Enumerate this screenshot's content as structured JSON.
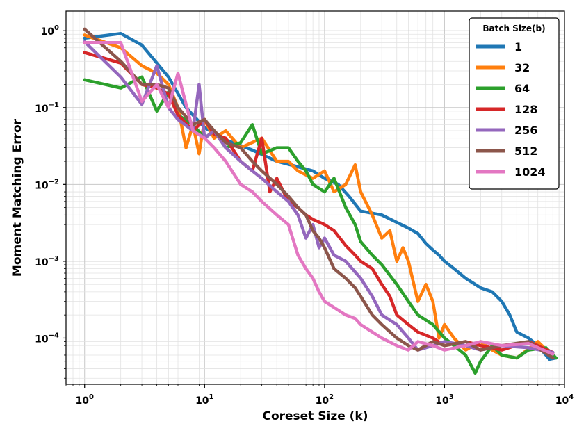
{
  "chart_data": {
    "type": "line",
    "title": "",
    "xlabel": "Coreset Size (k)",
    "ylabel": "Moment Matching Error",
    "xscale": "log",
    "yscale": "log",
    "xlim": [
      0.7,
      10000
    ],
    "ylim": [
      2.5e-05,
      1.8
    ],
    "grid": true,
    "x_ticks": [
      {
        "base": "10",
        "exp": "0",
        "value": 1
      },
      {
        "base": "10",
        "exp": "1",
        "value": 10
      },
      {
        "base": "10",
        "exp": "2",
        "value": 100
      },
      {
        "base": "10",
        "exp": "3",
        "value": 1000
      },
      {
        "base": "10",
        "exp": "4",
        "value": 10000
      }
    ],
    "y_ticks": [
      {
        "base": "10",
        "exp": "0",
        "value": 1
      },
      {
        "base": "10",
        "exp": "−1",
        "value": 0.1
      },
      {
        "base": "10",
        "exp": "−2",
        "value": 0.01
      },
      {
        "base": "10",
        "exp": "−3",
        "value": 0.001
      },
      {
        "base": "10",
        "exp": "−4",
        "value": 0.0001
      }
    ],
    "legend": {
      "title": "Batch Size(b)",
      "position": "top-right"
    },
    "series": [
      {
        "name": "1",
        "color": "#1f77b4",
        "points": [
          [
            1,
            0.8
          ],
          [
            2,
            0.92
          ],
          [
            3,
            0.65
          ],
          [
            5,
            0.25
          ],
          [
            7,
            0.1
          ],
          [
            10,
            0.055
          ],
          [
            15,
            0.038
          ],
          [
            25,
            0.028
          ],
          [
            40,
            0.02
          ],
          [
            60,
            0.017
          ],
          [
            80,
            0.015
          ],
          [
            100,
            0.012
          ],
          [
            130,
            0.01
          ],
          [
            160,
            0.007
          ],
          [
            200,
            0.0045
          ],
          [
            300,
            0.004
          ],
          [
            400,
            0.0032
          ],
          [
            500,
            0.0027
          ],
          [
            600,
            0.0023
          ],
          [
            700,
            0.0017
          ],
          [
            800,
            0.0014
          ],
          [
            900,
            0.0012
          ],
          [
            1000,
            0.001
          ],
          [
            1200,
            0.0008
          ],
          [
            1500,
            0.0006
          ],
          [
            2000,
            0.00045
          ],
          [
            2500,
            0.0004
          ],
          [
            3000,
            0.0003
          ],
          [
            3500,
            0.0002
          ],
          [
            4000,
            0.00012
          ],
          [
            5000,
            0.0001
          ],
          [
            6000,
            8e-05
          ],
          [
            7500,
            5.3e-05
          ],
          [
            8500,
            5.5e-05
          ]
        ]
      },
      {
        "name": "32",
        "color": "#ff7f0e",
        "points": [
          [
            1,
            0.88
          ],
          [
            2,
            0.6
          ],
          [
            3,
            0.35
          ],
          [
            4,
            0.28
          ],
          [
            5,
            0.2
          ],
          [
            6,
            0.1
          ],
          [
            7,
            0.03
          ],
          [
            8,
            0.06
          ],
          [
            9,
            0.025
          ],
          [
            10,
            0.07
          ],
          [
            12,
            0.04
          ],
          [
            15,
            0.05
          ],
          [
            20,
            0.03
          ],
          [
            30,
            0.04
          ],
          [
            40,
            0.02
          ],
          [
            50,
            0.02
          ],
          [
            60,
            0.015
          ],
          [
            80,
            0.012
          ],
          [
            100,
            0.015
          ],
          [
            120,
            0.008
          ],
          [
            150,
            0.01
          ],
          [
            180,
            0.018
          ],
          [
            200,
            0.008
          ],
          [
            250,
            0.004
          ],
          [
            300,
            0.002
          ],
          [
            350,
            0.0025
          ],
          [
            400,
            0.001
          ],
          [
            450,
            0.0015
          ],
          [
            500,
            0.001
          ],
          [
            600,
            0.0003
          ],
          [
            700,
            0.0005
          ],
          [
            800,
            0.0003
          ],
          [
            900,
            0.0001
          ],
          [
            1000,
            0.00015
          ],
          [
            1200,
            0.0001
          ],
          [
            1500,
            7e-05
          ],
          [
            2000,
            9e-05
          ],
          [
            2500,
            7e-05
          ],
          [
            3000,
            6e-05
          ],
          [
            4000,
            5.5e-05
          ],
          [
            6000,
            9e-05
          ],
          [
            8000,
            5.8e-05
          ]
        ]
      },
      {
        "name": "64",
        "color": "#2ca02c",
        "points": [
          [
            1,
            0.23
          ],
          [
            2,
            0.18
          ],
          [
            3,
            0.25
          ],
          [
            4,
            0.09
          ],
          [
            5,
            0.16
          ],
          [
            6,
            0.08
          ],
          [
            8,
            0.06
          ],
          [
            10,
            0.04
          ],
          [
            12,
            0.05
          ],
          [
            15,
            0.03
          ],
          [
            20,
            0.035
          ],
          [
            25,
            0.06
          ],
          [
            30,
            0.025
          ],
          [
            40,
            0.03
          ],
          [
            50,
            0.03
          ],
          [
            60,
            0.02
          ],
          [
            70,
            0.015
          ],
          [
            80,
            0.01
          ],
          [
            100,
            0.008
          ],
          [
            120,
            0.012
          ],
          [
            150,
            0.005
          ],
          [
            180,
            0.003
          ],
          [
            200,
            0.0018
          ],
          [
            250,
            0.0012
          ],
          [
            300,
            0.0009
          ],
          [
            400,
            0.0005
          ],
          [
            500,
            0.0003
          ],
          [
            600,
            0.0002
          ],
          [
            800,
            0.00015
          ],
          [
            1000,
            0.0001
          ],
          [
            1200,
            8e-05
          ],
          [
            1500,
            6e-05
          ],
          [
            1800,
            3.5e-05
          ],
          [
            2000,
            5e-05
          ],
          [
            2500,
            8e-05
          ],
          [
            3000,
            6e-05
          ],
          [
            4000,
            5.5e-05
          ],
          [
            5000,
            7e-05
          ],
          [
            7000,
            7.5e-05
          ],
          [
            8500,
            5.5e-05
          ]
        ]
      },
      {
        "name": "128",
        "color": "#d62728",
        "points": [
          [
            1,
            0.52
          ],
          [
            2,
            0.38
          ],
          [
            3,
            0.2
          ],
          [
            4,
            0.18
          ],
          [
            5,
            0.15
          ],
          [
            6,
            0.08
          ],
          [
            8,
            0.05
          ],
          [
            10,
            0.07
          ],
          [
            12,
            0.045
          ],
          [
            15,
            0.04
          ],
          [
            20,
            0.02
          ],
          [
            25,
            0.015
          ],
          [
            30,
            0.04
          ],
          [
            35,
            0.008
          ],
          [
            40,
            0.012
          ],
          [
            50,
            0.006
          ],
          [
            60,
            0.005
          ],
          [
            70,
            0.004
          ],
          [
            80,
            0.0035
          ],
          [
            100,
            0.003
          ],
          [
            120,
            0.0025
          ],
          [
            150,
            0.0016
          ],
          [
            180,
            0.0012
          ],
          [
            200,
            0.001
          ],
          [
            250,
            0.0008
          ],
          [
            300,
            0.0005
          ],
          [
            350,
            0.00035
          ],
          [
            400,
            0.0002
          ],
          [
            500,
            0.00015
          ],
          [
            600,
            0.00012
          ],
          [
            800,
            0.0001
          ],
          [
            1000,
            8e-05
          ],
          [
            1500,
            9e-05
          ],
          [
            2000,
            8e-05
          ],
          [
            3000,
            7e-05
          ],
          [
            5000,
            9e-05
          ],
          [
            8000,
            6.5e-05
          ]
        ]
      },
      {
        "name": "256",
        "color": "#9467bd",
        "points": [
          [
            1,
            0.72
          ],
          [
            2,
            0.25
          ],
          [
            3,
            0.11
          ],
          [
            4,
            0.35
          ],
          [
            5,
            0.1
          ],
          [
            6,
            0.07
          ],
          [
            8,
            0.05
          ],
          [
            9,
            0.2
          ],
          [
            10,
            0.04
          ],
          [
            12,
            0.05
          ],
          [
            15,
            0.03
          ],
          [
            20,
            0.02
          ],
          [
            25,
            0.015
          ],
          [
            30,
            0.012
          ],
          [
            40,
            0.008
          ],
          [
            50,
            0.006
          ],
          [
            60,
            0.004
          ],
          [
            70,
            0.002
          ],
          [
            80,
            0.003
          ],
          [
            90,
            0.0015
          ],
          [
            100,
            0.002
          ],
          [
            120,
            0.0012
          ],
          [
            150,
            0.001
          ],
          [
            200,
            0.0006
          ],
          [
            250,
            0.00035
          ],
          [
            300,
            0.0002
          ],
          [
            400,
            0.00015
          ],
          [
            500,
            0.0001
          ],
          [
            600,
            7e-05
          ],
          [
            800,
            8e-05
          ],
          [
            1000,
            9e-05
          ],
          [
            1500,
            8e-05
          ],
          [
            2000,
            7e-05
          ],
          [
            3000,
            8e-05
          ],
          [
            5000,
            7.5e-05
          ],
          [
            8000,
            6.5e-05
          ]
        ]
      },
      {
        "name": "512",
        "color": "#8c564b",
        "points": [
          [
            1,
            1.05
          ],
          [
            2,
            0.4
          ],
          [
            3,
            0.2
          ],
          [
            4,
            0.2
          ],
          [
            5,
            0.18
          ],
          [
            6,
            0.1
          ],
          [
            8,
            0.06
          ],
          [
            10,
            0.07
          ],
          [
            12,
            0.05
          ],
          [
            15,
            0.035
          ],
          [
            20,
            0.03
          ],
          [
            25,
            0.02
          ],
          [
            30,
            0.015
          ],
          [
            40,
            0.01
          ],
          [
            50,
            0.007
          ],
          [
            60,
            0.005
          ],
          [
            70,
            0.004
          ],
          [
            80,
            0.0025
          ],
          [
            90,
            0.002
          ],
          [
            100,
            0.0015
          ],
          [
            120,
            0.0008
          ],
          [
            150,
            0.0006
          ],
          [
            180,
            0.00045
          ],
          [
            200,
            0.00035
          ],
          [
            250,
            0.0002
          ],
          [
            300,
            0.00015
          ],
          [
            400,
            0.0001
          ],
          [
            500,
            8e-05
          ],
          [
            600,
            7e-05
          ],
          [
            800,
            9e-05
          ],
          [
            1000,
            8e-05
          ],
          [
            1500,
            9e-05
          ],
          [
            2000,
            7e-05
          ],
          [
            3000,
            8e-05
          ],
          [
            5000,
            9e-05
          ],
          [
            8000,
            5.5e-05
          ]
        ]
      },
      {
        "name": "1024",
        "color": "#e377c2",
        "points": [
          [
            1,
            0.7
          ],
          [
            2,
            0.7
          ],
          [
            3,
            0.12
          ],
          [
            4,
            0.2
          ],
          [
            5,
            0.1
          ],
          [
            6,
            0.28
          ],
          [
            8,
            0.05
          ],
          [
            10,
            0.04
          ],
          [
            12,
            0.03
          ],
          [
            15,
            0.02
          ],
          [
            20,
            0.01
          ],
          [
            25,
            0.008
          ],
          [
            30,
            0.006
          ],
          [
            40,
            0.004
          ],
          [
            50,
            0.003
          ],
          [
            60,
            0.0012
          ],
          [
            70,
            0.0008
          ],
          [
            80,
            0.0006
          ],
          [
            90,
            0.0004
          ],
          [
            100,
            0.0003
          ],
          [
            120,
            0.00025
          ],
          [
            150,
            0.0002
          ],
          [
            180,
            0.00018
          ],
          [
            200,
            0.00015
          ],
          [
            250,
            0.00012
          ],
          [
            300,
            0.0001
          ],
          [
            400,
            8e-05
          ],
          [
            500,
            7e-05
          ],
          [
            600,
            9e-05
          ],
          [
            800,
            8e-05
          ],
          [
            1000,
            7e-05
          ],
          [
            1500,
            8e-05
          ],
          [
            2000,
            9e-05
          ],
          [
            3000,
            8e-05
          ],
          [
            5000,
            8.5e-05
          ],
          [
            8000,
            6.2e-05
          ]
        ]
      }
    ]
  }
}
